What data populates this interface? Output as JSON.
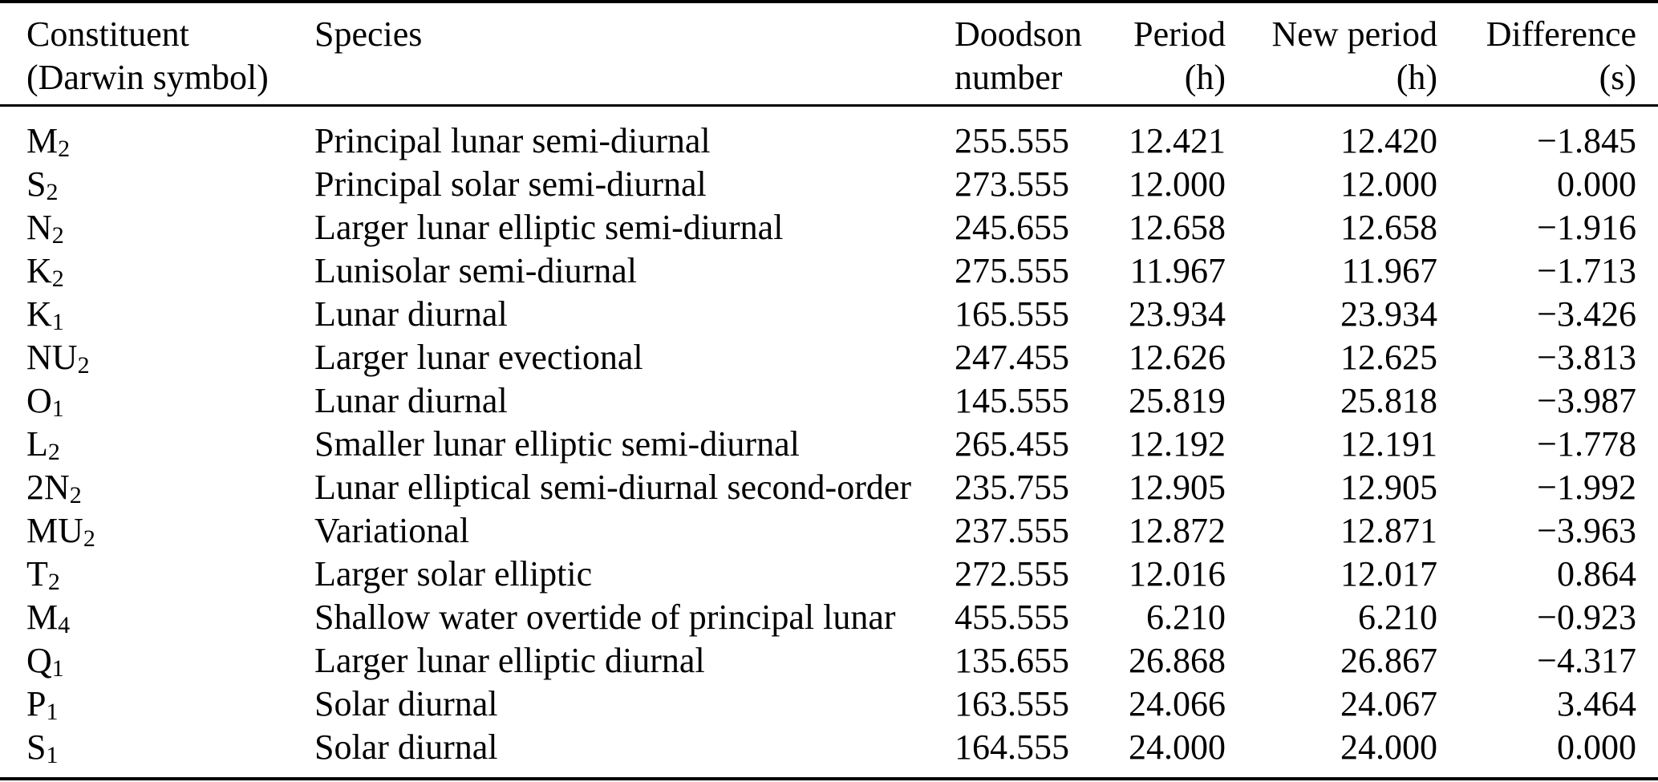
{
  "table": {
    "columns": [
      {
        "line1": "Constituent",
        "line2": "(Darwin symbol)"
      },
      {
        "line1": "Species",
        "line2": ""
      },
      {
        "line1": "Doodson",
        "line2": "number"
      },
      {
        "line1": "Period",
        "line2": "(h)"
      },
      {
        "line1": "New period",
        "line2": "(h)"
      },
      {
        "line1": "Difference",
        "line2": "(s)"
      }
    ],
    "rows": [
      {
        "symbol": "M",
        "sub": "2",
        "species": "Principal lunar semi-diurnal",
        "doodson": "255.555",
        "period": "12.421",
        "new_period": "12.420",
        "difference": "−1.845"
      },
      {
        "symbol": "S",
        "sub": "2",
        "species": "Principal solar semi-diurnal",
        "doodson": "273.555",
        "period": "12.000",
        "new_period": "12.000",
        "difference": "0.000"
      },
      {
        "symbol": "N",
        "sub": "2",
        "species": "Larger lunar elliptic semi-diurnal",
        "doodson": "245.655",
        "period": "12.658",
        "new_period": "12.658",
        "difference": "−1.916"
      },
      {
        "symbol": "K",
        "sub": "2",
        "species": "Lunisolar semi-diurnal",
        "doodson": "275.555",
        "period": "11.967",
        "new_period": "11.967",
        "difference": "−1.713"
      },
      {
        "symbol": "K",
        "sub": "1",
        "species": "Lunar diurnal",
        "doodson": "165.555",
        "period": "23.934",
        "new_period": "23.934",
        "difference": "−3.426"
      },
      {
        "symbol": "NU",
        "sub": "2",
        "species": "Larger lunar evectional",
        "doodson": "247.455",
        "period": "12.626",
        "new_period": "12.625",
        "difference": "−3.813"
      },
      {
        "symbol": "O",
        "sub": "1",
        "species": "Lunar diurnal",
        "doodson": "145.555",
        "period": "25.819",
        "new_period": "25.818",
        "difference": "−3.987"
      },
      {
        "symbol": "L",
        "sub": "2",
        "species": "Smaller lunar elliptic semi-diurnal",
        "doodson": "265.455",
        "period": "12.192",
        "new_period": "12.191",
        "difference": "−1.778"
      },
      {
        "symbol": "2N",
        "sub": "2",
        "species": "Lunar elliptical semi-diurnal second-order",
        "doodson": "235.755",
        "period": "12.905",
        "new_period": "12.905",
        "difference": "−1.992"
      },
      {
        "symbol": "MU",
        "sub": "2",
        "species": "Variational",
        "doodson": "237.555",
        "period": "12.872",
        "new_period": "12.871",
        "difference": "−3.963"
      },
      {
        "symbol": "T",
        "sub": "2",
        "species": "Larger solar elliptic",
        "doodson": "272.555",
        "period": "12.016",
        "new_period": "12.017",
        "difference": "0.864"
      },
      {
        "symbol": "M",
        "sub": "4",
        "species": "Shallow water overtide of principal lunar",
        "doodson": "455.555",
        "period": "6.210",
        "new_period": "6.210",
        "difference": "−0.923"
      },
      {
        "symbol": "Q",
        "sub": "1",
        "species": "Larger lunar elliptic diurnal",
        "doodson": "135.655",
        "period": "26.868",
        "new_period": "26.867",
        "difference": "−4.317"
      },
      {
        "symbol": "P",
        "sub": "1",
        "species": "Solar diurnal",
        "doodson": "163.555",
        "period": "24.066",
        "new_period": "24.067",
        "difference": "3.464"
      },
      {
        "symbol": "S",
        "sub": "1",
        "species": "Solar diurnal",
        "doodson": "164.555",
        "period": "24.000",
        "new_period": "24.000",
        "difference": "0.000"
      }
    ]
  }
}
